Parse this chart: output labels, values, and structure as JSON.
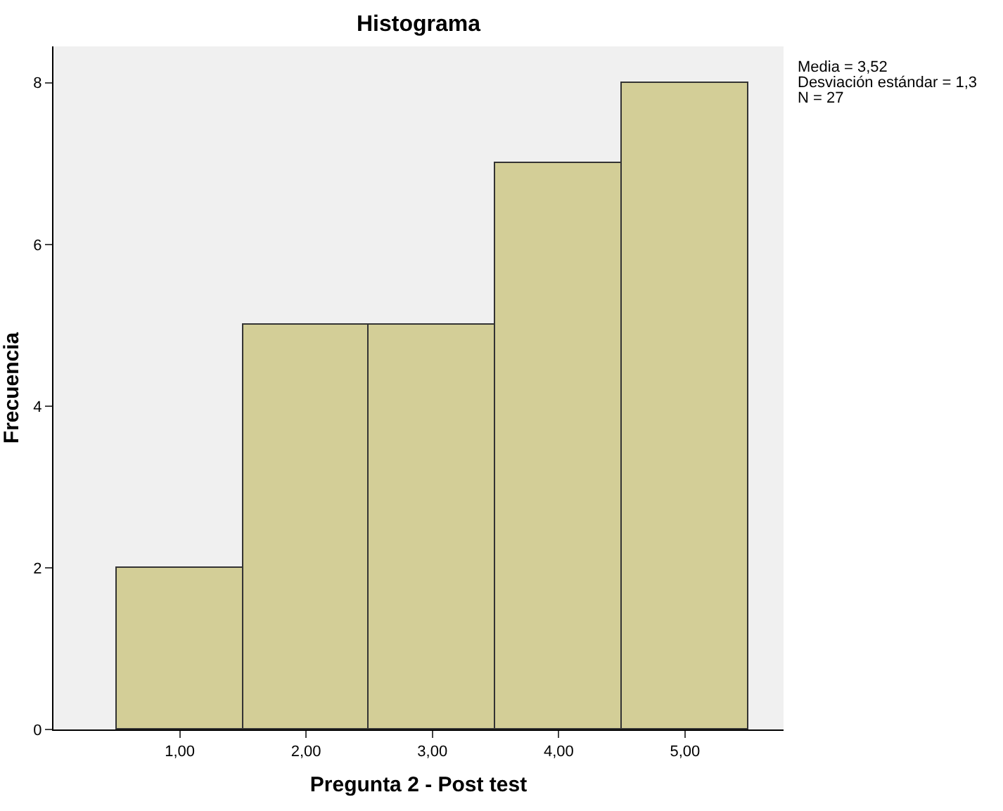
{
  "chart_data": {
    "type": "histogram",
    "title": "Histograma",
    "xlabel": "Pregunta 2 - Post test",
    "ylabel": "Frecuencia",
    "bins": [
      0.5,
      1.5,
      2.5,
      3.5,
      4.5,
      5.5
    ],
    "values": [
      2,
      5,
      5,
      7,
      8
    ],
    "color": "#d3ce97",
    "xlim": [
      0,
      5.78
    ],
    "xticks": [
      {
        "value": 1,
        "label": "1,00"
      },
      {
        "value": 2,
        "label": "2,00"
      },
      {
        "value": 3,
        "label": "3,00"
      },
      {
        "value": 4,
        "label": "4,00"
      },
      {
        "value": 5,
        "label": "5,00"
      }
    ],
    "ylim": [
      0,
      8.45
    ],
    "yticks": [
      0,
      2,
      4,
      6,
      8
    ],
    "grid": false,
    "annotations": [
      "Media = 3,52",
      "Desviación estándar = 1,3",
      "N = 27"
    ]
  }
}
